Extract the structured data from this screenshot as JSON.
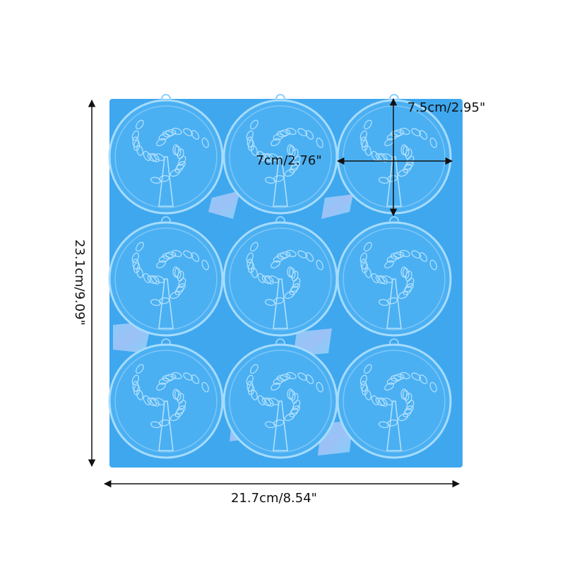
{
  "dimensions": {
    "height_label": "23.1cm/9.09\"",
    "width_label": "21.7cm/8.54\"",
    "circle_height_label": "7.5cm/2.95\"",
    "circle_width_label": "7cm/2.76\""
  }
}
